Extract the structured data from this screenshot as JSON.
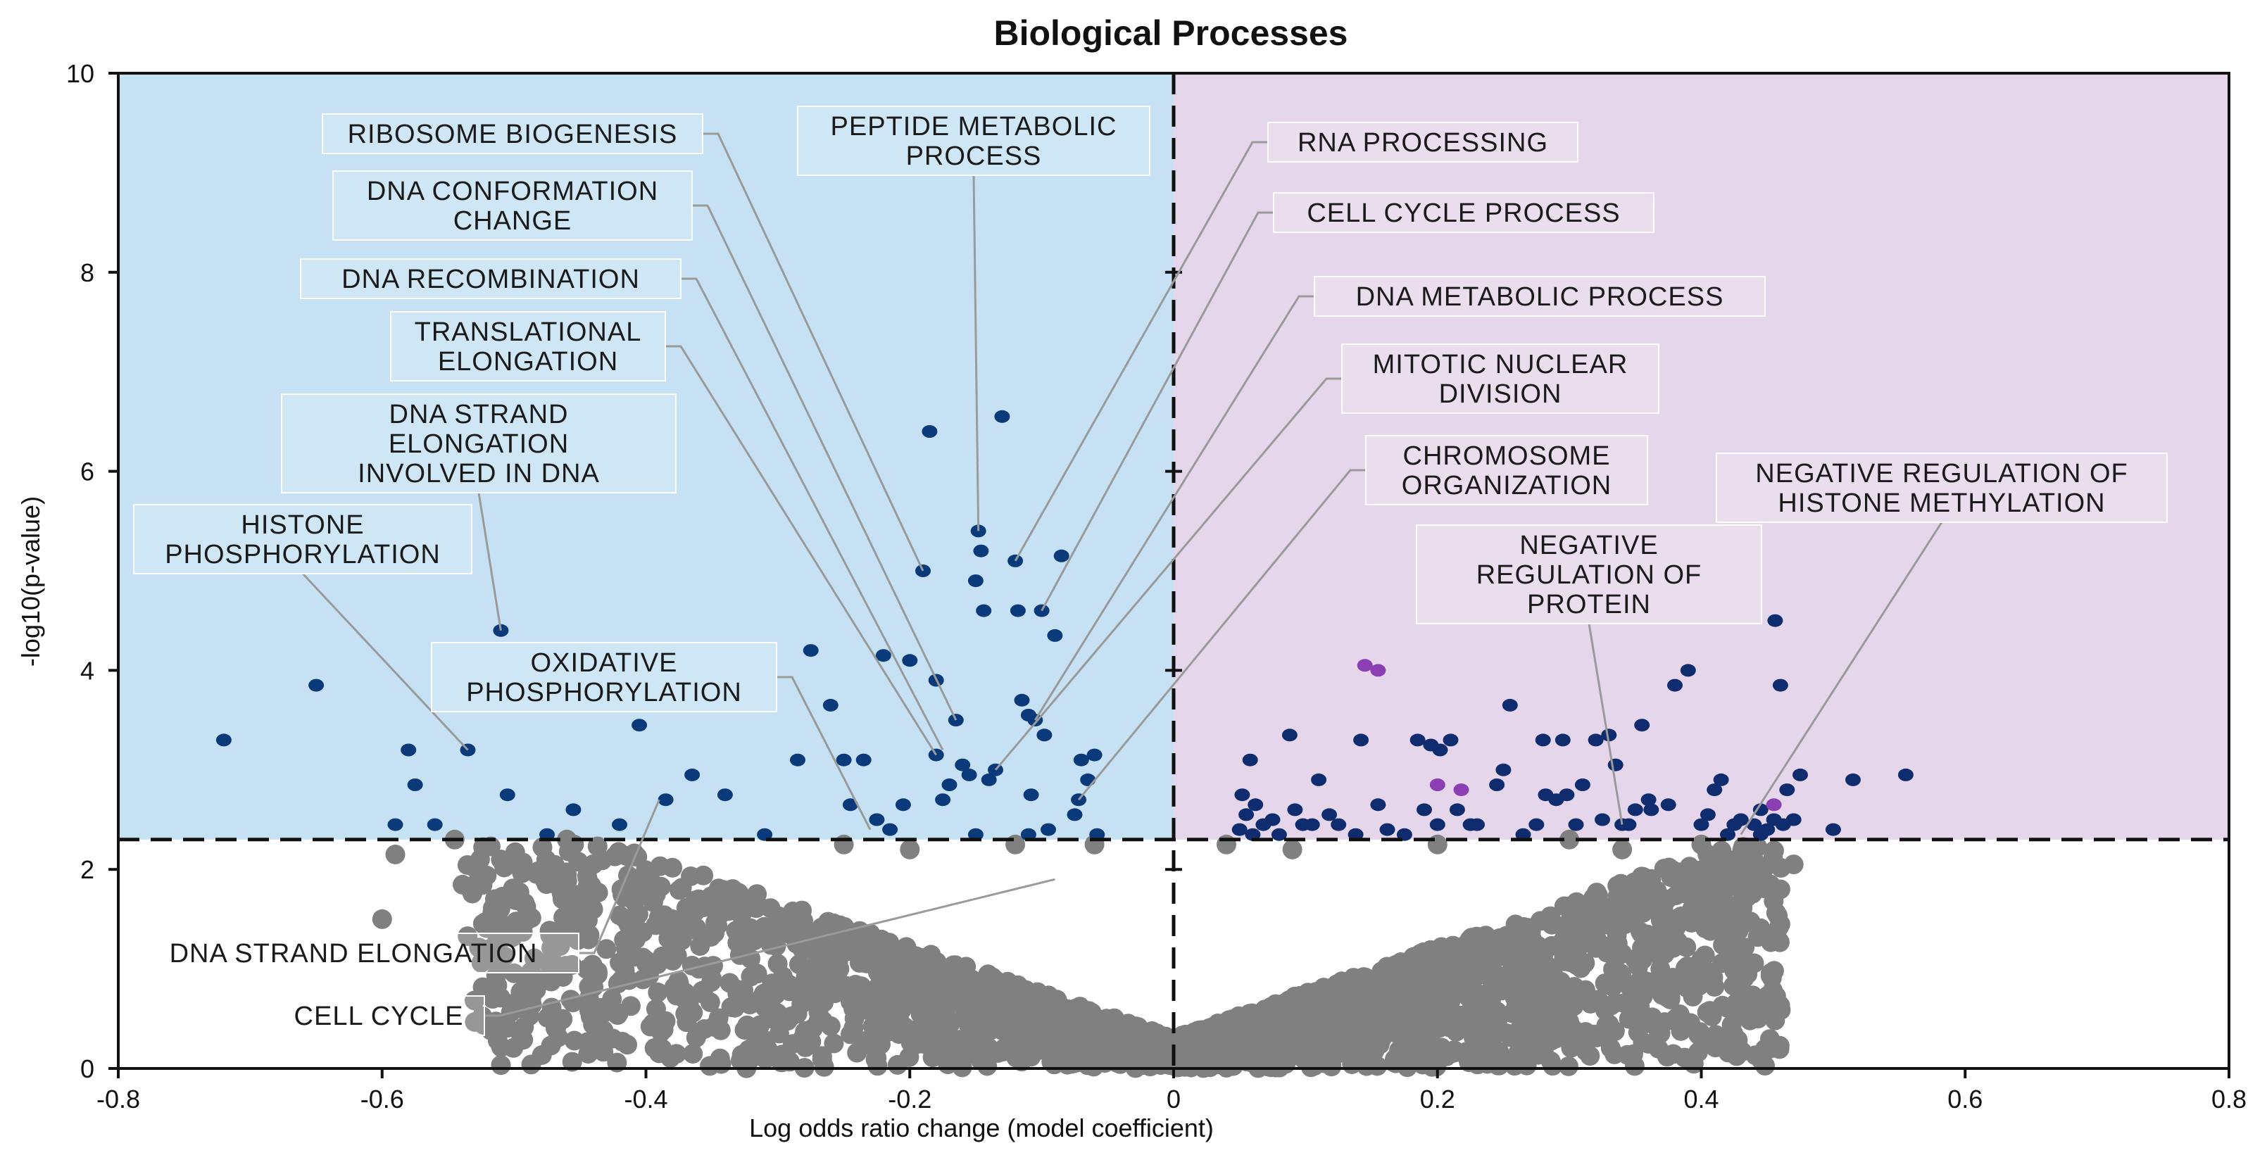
{
  "chart_data": {
    "type": "scatter",
    "title": "Biological Processes",
    "xlabel": "Log odds ratio change (model coefficient)",
    "ylabel": "-log10(p-value)",
    "xlim": [
      -0.8,
      0.8
    ],
    "ylim": [
      0,
      10
    ],
    "xticks": [
      "-0.8",
      "-0.6",
      "-0.4",
      "-0.2",
      "0",
      "0.2",
      "0.4",
      "0.6",
      "0.8"
    ],
    "yticks": [
      "0",
      "2",
      "4",
      "6",
      "8",
      "10"
    ],
    "significance_threshold": 2.3,
    "colors": {
      "left_region": "#c5e1f3",
      "right_region": "#e5d6eb",
      "nonsignificant": "#808080",
      "significant_left": "#0a3a7a",
      "significant_right": "#0f2d6e",
      "highlighted": "#8b3fb3"
    },
    "series": [
      {
        "name": "significant-negative",
        "points": [
          [
            -0.72,
            3.3
          ],
          [
            -0.65,
            3.85
          ],
          [
            -0.58,
            3.2
          ],
          [
            -0.575,
            2.85
          ],
          [
            -0.59,
            2.45
          ],
          [
            -0.56,
            2.45
          ],
          [
            -0.535,
            3.2
          ],
          [
            -0.51,
            4.4
          ],
          [
            -0.505,
            2.75
          ],
          [
            -0.475,
            2.35
          ],
          [
            -0.455,
            2.6
          ],
          [
            -0.42,
            2.45
          ],
          [
            -0.405,
            3.45
          ],
          [
            -0.385,
            2.7
          ],
          [
            -0.365,
            2.95
          ],
          [
            -0.34,
            2.75
          ],
          [
            -0.31,
            2.35
          ],
          [
            -0.285,
            3.1
          ],
          [
            -0.275,
            4.2
          ],
          [
            -0.26,
            3.65
          ],
          [
            -0.25,
            3.1
          ],
          [
            -0.245,
            2.65
          ],
          [
            -0.235,
            3.1
          ],
          [
            -0.225,
            2.5
          ],
          [
            -0.22,
            4.15
          ],
          [
            -0.215,
            2.4
          ],
          [
            -0.205,
            2.65
          ],
          [
            -0.2,
            4.1
          ],
          [
            -0.19,
            5.0
          ],
          [
            -0.185,
            6.4
          ],
          [
            -0.18,
            3.15
          ],
          [
            -0.18,
            3.9
          ],
          [
            -0.175,
            2.7
          ],
          [
            -0.17,
            2.85
          ],
          [
            -0.165,
            3.5
          ],
          [
            -0.16,
            3.05
          ],
          [
            -0.155,
            2.95
          ],
          [
            -0.15,
            4.9
          ],
          [
            -0.148,
            5.4
          ],
          [
            -0.146,
            5.2
          ],
          [
            -0.144,
            4.6
          ],
          [
            -0.14,
            2.9
          ],
          [
            -0.13,
            6.55
          ],
          [
            -0.12,
            5.1
          ],
          [
            -0.118,
            4.6
          ],
          [
            -0.115,
            3.7
          ],
          [
            -0.11,
            3.55
          ],
          [
            -0.108,
            2.75
          ],
          [
            -0.105,
            3.5
          ],
          [
            -0.1,
            4.6
          ],
          [
            -0.098,
            3.35
          ],
          [
            -0.095,
            2.4
          ],
          [
            -0.09,
            4.35
          ],
          [
            -0.085,
            5.15
          ],
          [
            -0.075,
            2.55
          ],
          [
            -0.072,
            2.7
          ],
          [
            -0.07,
            3.1
          ],
          [
            -0.065,
            2.9
          ],
          [
            -0.06,
            3.15
          ],
          [
            -0.058,
            2.35
          ],
          [
            -0.15,
            2.35
          ],
          [
            -0.11,
            2.35
          ],
          [
            -0.135,
            3.0
          ]
        ]
      },
      {
        "name": "significant-positive",
        "points": [
          [
            0.05,
            2.4
          ],
          [
            0.052,
            2.75
          ],
          [
            0.055,
            2.55
          ],
          [
            0.058,
            3.1
          ],
          [
            0.06,
            2.35
          ],
          [
            0.062,
            2.65
          ],
          [
            0.068,
            2.45
          ],
          [
            0.075,
            2.5
          ],
          [
            0.08,
            2.35
          ],
          [
            0.088,
            3.35
          ],
          [
            0.092,
            2.6
          ],
          [
            0.098,
            2.45
          ],
          [
            0.105,
            2.45
          ],
          [
            0.11,
            2.9
          ],
          [
            0.118,
            2.55
          ],
          [
            0.125,
            2.45
          ],
          [
            0.138,
            2.35
          ],
          [
            0.142,
            3.3
          ],
          [
            0.155,
            2.65
          ],
          [
            0.162,
            2.4
          ],
          [
            0.175,
            2.35
          ],
          [
            0.185,
            3.3
          ],
          [
            0.19,
            2.6
          ],
          [
            0.195,
            3.25
          ],
          [
            0.2,
            2.45
          ],
          [
            0.202,
            3.2
          ],
          [
            0.21,
            3.3
          ],
          [
            0.215,
            2.6
          ],
          [
            0.225,
            2.45
          ],
          [
            0.23,
            2.45
          ],
          [
            0.245,
            2.85
          ],
          [
            0.25,
            3.0
          ],
          [
            0.255,
            3.65
          ],
          [
            0.265,
            2.35
          ],
          [
            0.275,
            2.45
          ],
          [
            0.28,
            3.3
          ],
          [
            0.282,
            2.75
          ],
          [
            0.29,
            2.7
          ],
          [
            0.295,
            3.3
          ],
          [
            0.298,
            2.75
          ],
          [
            0.305,
            2.45
          ],
          [
            0.31,
            2.85
          ],
          [
            0.32,
            3.3
          ],
          [
            0.325,
            2.5
          ],
          [
            0.33,
            3.35
          ],
          [
            0.335,
            3.05
          ],
          [
            0.34,
            2.45
          ],
          [
            0.35,
            2.6
          ],
          [
            0.355,
            3.45
          ],
          [
            0.36,
            2.7
          ],
          [
            0.362,
            2.6
          ],
          [
            0.375,
            2.65
          ],
          [
            0.38,
            3.85
          ],
          [
            0.39,
            4.0
          ],
          [
            0.4,
            2.45
          ],
          [
            0.405,
            2.55
          ],
          [
            0.41,
            2.8
          ],
          [
            0.415,
            2.9
          ],
          [
            0.42,
            2.35
          ],
          [
            0.425,
            2.45
          ],
          [
            0.43,
            2.5
          ],
          [
            0.44,
            2.45
          ],
          [
            0.445,
            2.6
          ],
          [
            0.45,
            2.4
          ],
          [
            0.455,
            2.5
          ],
          [
            0.456,
            4.5
          ],
          [
            0.46,
            3.85
          ],
          [
            0.462,
            2.45
          ],
          [
            0.465,
            2.8
          ],
          [
            0.47,
            2.5
          ],
          [
            0.475,
            2.95
          ],
          [
            0.5,
            2.4
          ],
          [
            0.515,
            2.9
          ],
          [
            0.555,
            2.95
          ],
          [
            0.445,
            2.35
          ],
          [
            0.345,
            2.45
          ]
        ]
      },
      {
        "name": "highlighted",
        "points": [
          [
            0.145,
            4.05
          ],
          [
            0.155,
            4.0
          ],
          [
            0.2,
            2.85
          ],
          [
            0.218,
            2.8
          ],
          [
            0.455,
            2.65
          ]
        ]
      }
    ],
    "annotations": [
      {
        "label": [
          "RIBOSOME BIOGENESIS"
        ],
        "point": [
          -0.19,
          5.0
        ]
      },
      {
        "label": [
          "DNA CONFORMATION",
          "CHANGE"
        ],
        "point": [
          -0.165,
          3.5
        ]
      },
      {
        "label": [
          "DNA RECOMBINATION"
        ],
        "point": [
          -0.175,
          3.2
        ]
      },
      {
        "label": [
          "TRANSLATIONAL",
          "ELONGATION"
        ],
        "point": [
          -0.18,
          3.15
        ]
      },
      {
        "label": [
          "DNA STRAND",
          "ELONGATION",
          "INVOLVED IN DNA"
        ],
        "point": [
          -0.51,
          4.4
        ]
      },
      {
        "label": [
          "HISTONE",
          "PHOSPHORYLATION"
        ],
        "point": [
          -0.535,
          3.2
        ]
      },
      {
        "label": [
          "OXIDATIVE",
          "PHOSPHORYLATION"
        ],
        "point": [
          -0.23,
          2.4
        ]
      },
      {
        "label": [
          "PEPTIDE METABOLIC",
          "PROCESS"
        ],
        "point": [
          -0.148,
          5.4
        ]
      },
      {
        "label": [
          "RNA PROCESSING"
        ],
        "point": [
          -0.12,
          5.1
        ]
      },
      {
        "label": [
          "CELL CYCLE PROCESS"
        ],
        "point": [
          -0.1,
          4.6
        ]
      },
      {
        "label": [
          "DNA METABOLIC PROCESS"
        ],
        "point": [
          -0.105,
          3.5
        ]
      },
      {
        "label": [
          "MITOTIC NUCLEAR",
          "DIVISION"
        ],
        "point": [
          -0.135,
          3.0
        ]
      },
      {
        "label": [
          "CHROMOSOME",
          "ORGANIZATION"
        ],
        "point": [
          -0.072,
          2.7
        ]
      },
      {
        "label": [
          "NEGATIVE REGULATION OF",
          "HISTONE METHYLATION"
        ],
        "point": [
          0.43,
          2.35
        ]
      },
      {
        "label": [
          "NEGATIVE",
          "REGULATION OF",
          "PROTEIN"
        ],
        "point": [
          0.34,
          2.45
        ]
      },
      {
        "label": [
          "DNA STRAND ELONGATION"
        ],
        "point": [
          -0.39,
          2.7
        ]
      },
      {
        "label": [
          "CELL CYCLE"
        ],
        "point": [
          -0.09,
          1.9
        ]
      }
    ]
  }
}
